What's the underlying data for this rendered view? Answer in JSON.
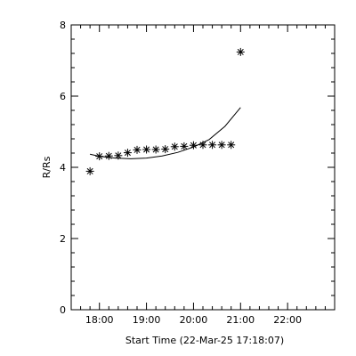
{
  "chart_data": {
    "type": "scatter",
    "xlabel": "Start Time (22-Mar-25 17:18:07)",
    "ylabel": "R/Rs",
    "xlim": [
      "17:24",
      "23:00"
    ],
    "ylim": [
      0,
      8
    ],
    "x_ticks": [
      "18:00",
      "19:00",
      "20:00",
      "21:00",
      "22:00"
    ],
    "y_ticks": [
      "0",
      "2",
      "4",
      "6",
      "8"
    ],
    "marker": "asterisk",
    "series": [
      {
        "points": [
          {
            "x": "17:48",
            "y": 3.89
          },
          {
            "x": "18:00",
            "y": 4.31
          },
          {
            "x": "18:12",
            "y": 4.32
          },
          {
            "x": "18:24",
            "y": 4.33
          },
          {
            "x": "18:36",
            "y": 4.41
          },
          {
            "x": "18:48",
            "y": 4.49
          },
          {
            "x": "19:00",
            "y": 4.5
          },
          {
            "x": "19:12",
            "y": 4.5
          },
          {
            "x": "19:24",
            "y": 4.51
          },
          {
            "x": "19:36",
            "y": 4.58
          },
          {
            "x": "19:48",
            "y": 4.59
          },
          {
            "x": "20:00",
            "y": 4.62
          },
          {
            "x": "20:12",
            "y": 4.63
          },
          {
            "x": "20:24",
            "y": 4.63
          },
          {
            "x": "20:36",
            "y": 4.63
          },
          {
            "x": "20:48",
            "y": 4.63
          },
          {
            "x": "21:00",
            "y": 7.24
          }
        ]
      },
      {
        "type": "line",
        "points": [
          {
            "x": "17:48",
            "y": 4.37
          },
          {
            "x": "18:00",
            "y": 4.31
          },
          {
            "x": "18:20",
            "y": 4.26
          },
          {
            "x": "18:40",
            "y": 4.24
          },
          {
            "x": "19:00",
            "y": 4.26
          },
          {
            "x": "19:20",
            "y": 4.32
          },
          {
            "x": "19:40",
            "y": 4.42
          },
          {
            "x": "20:00",
            "y": 4.57
          },
          {
            "x": "20:20",
            "y": 4.78
          },
          {
            "x": "20:40",
            "y": 5.15
          },
          {
            "x": "21:00",
            "y": 5.68
          }
        ]
      }
    ]
  }
}
